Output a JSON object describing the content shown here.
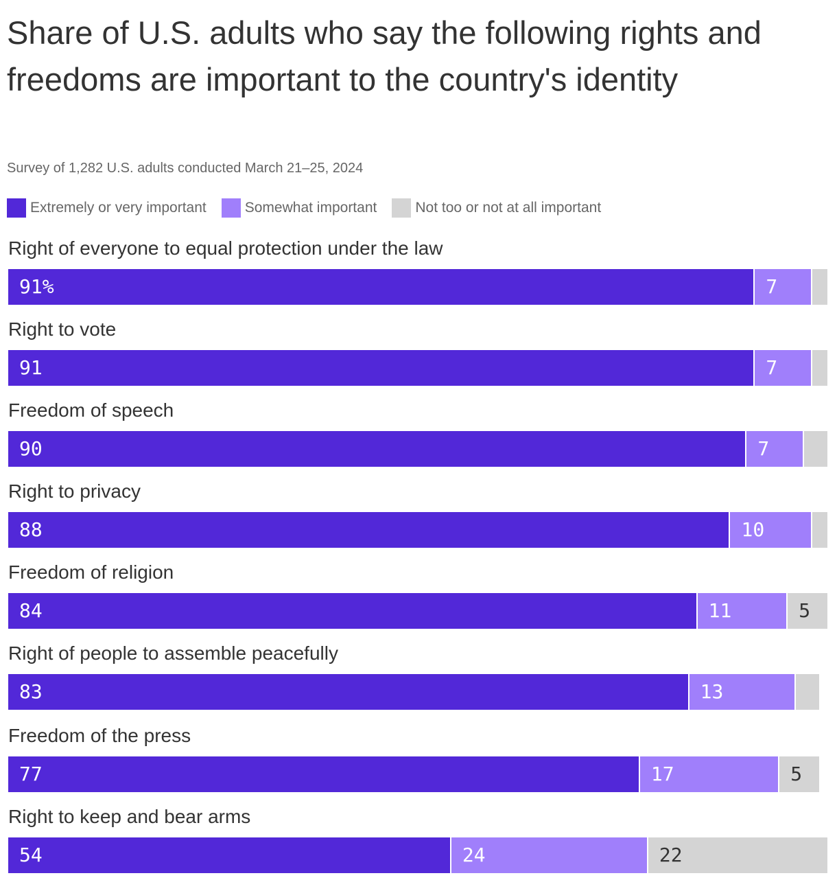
{
  "chart_data": {
    "type": "bar",
    "orientation": "horizontal",
    "stacked": true,
    "title": "Share of U.S. adults who say the following rights and freedoms are important to the country's identity",
    "subtitle": "Survey of 1,282 U.S. adults conducted March 21–25, 2024",
    "unit_suffix": "%",
    "xlim": [
      0,
      100
    ],
    "legend_position": "top-left",
    "series": [
      {
        "name": "Extremely or very important",
        "color": "#5228d8",
        "label_color": "#ffffff"
      },
      {
        "name": "Somewhat important",
        "color": "#a07ffb",
        "label_color": "#ffffff"
      },
      {
        "name": "Not too or not at all important",
        "color": "#d4d4d4",
        "label_color": "#333333"
      }
    ],
    "categories": [
      "Right of everyone to equal protection under the law",
      "Right to vote",
      "Freedom of speech",
      "Right to privacy",
      "Freedom of religion",
      "Right of people to assemble peacefully",
      "Freedom of the press",
      "Right to keep and bear arms"
    ],
    "values": [
      [
        91,
        7,
        2
      ],
      [
        91,
        7,
        2
      ],
      [
        90,
        7,
        3
      ],
      [
        88,
        10,
        2
      ],
      [
        84,
        11,
        5
      ],
      [
        83,
        13,
        3
      ],
      [
        77,
        17,
        5
      ],
      [
        54,
        24,
        22
      ]
    ]
  }
}
